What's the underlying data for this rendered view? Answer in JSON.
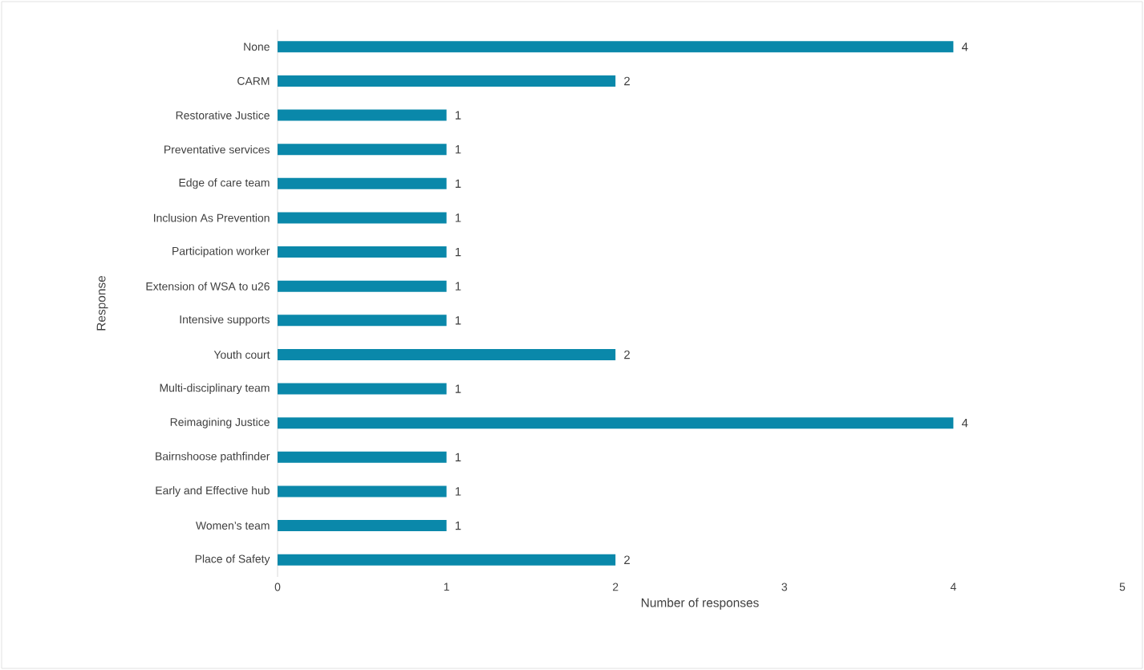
{
  "chart_data": {
    "type": "bar",
    "orientation": "horizontal",
    "categories": [
      "None",
      "CARM",
      "Restorative Justice",
      "Preventative services",
      "Edge of care team",
      "Inclusion As Prevention",
      "Participation worker",
      "Extension of WSA to u26",
      "Intensive supports",
      "Youth court",
      "Multi-disciplinary team",
      "Reimagining Justice",
      "Bairnshoose pathfinder",
      "Early and Effective hub",
      "Women’s team",
      "Place of Safety"
    ],
    "values": [
      4,
      2,
      1,
      1,
      1,
      1,
      1,
      1,
      1,
      2,
      1,
      4,
      1,
      1,
      1,
      2
    ],
    "color": "#0a88aa",
    "xlabel": "Number of responses",
    "ylabel": "Response",
    "xlim": [
      0,
      5
    ],
    "xticks": [
      0,
      1,
      2,
      3,
      4,
      5
    ],
    "data_labels": true
  }
}
